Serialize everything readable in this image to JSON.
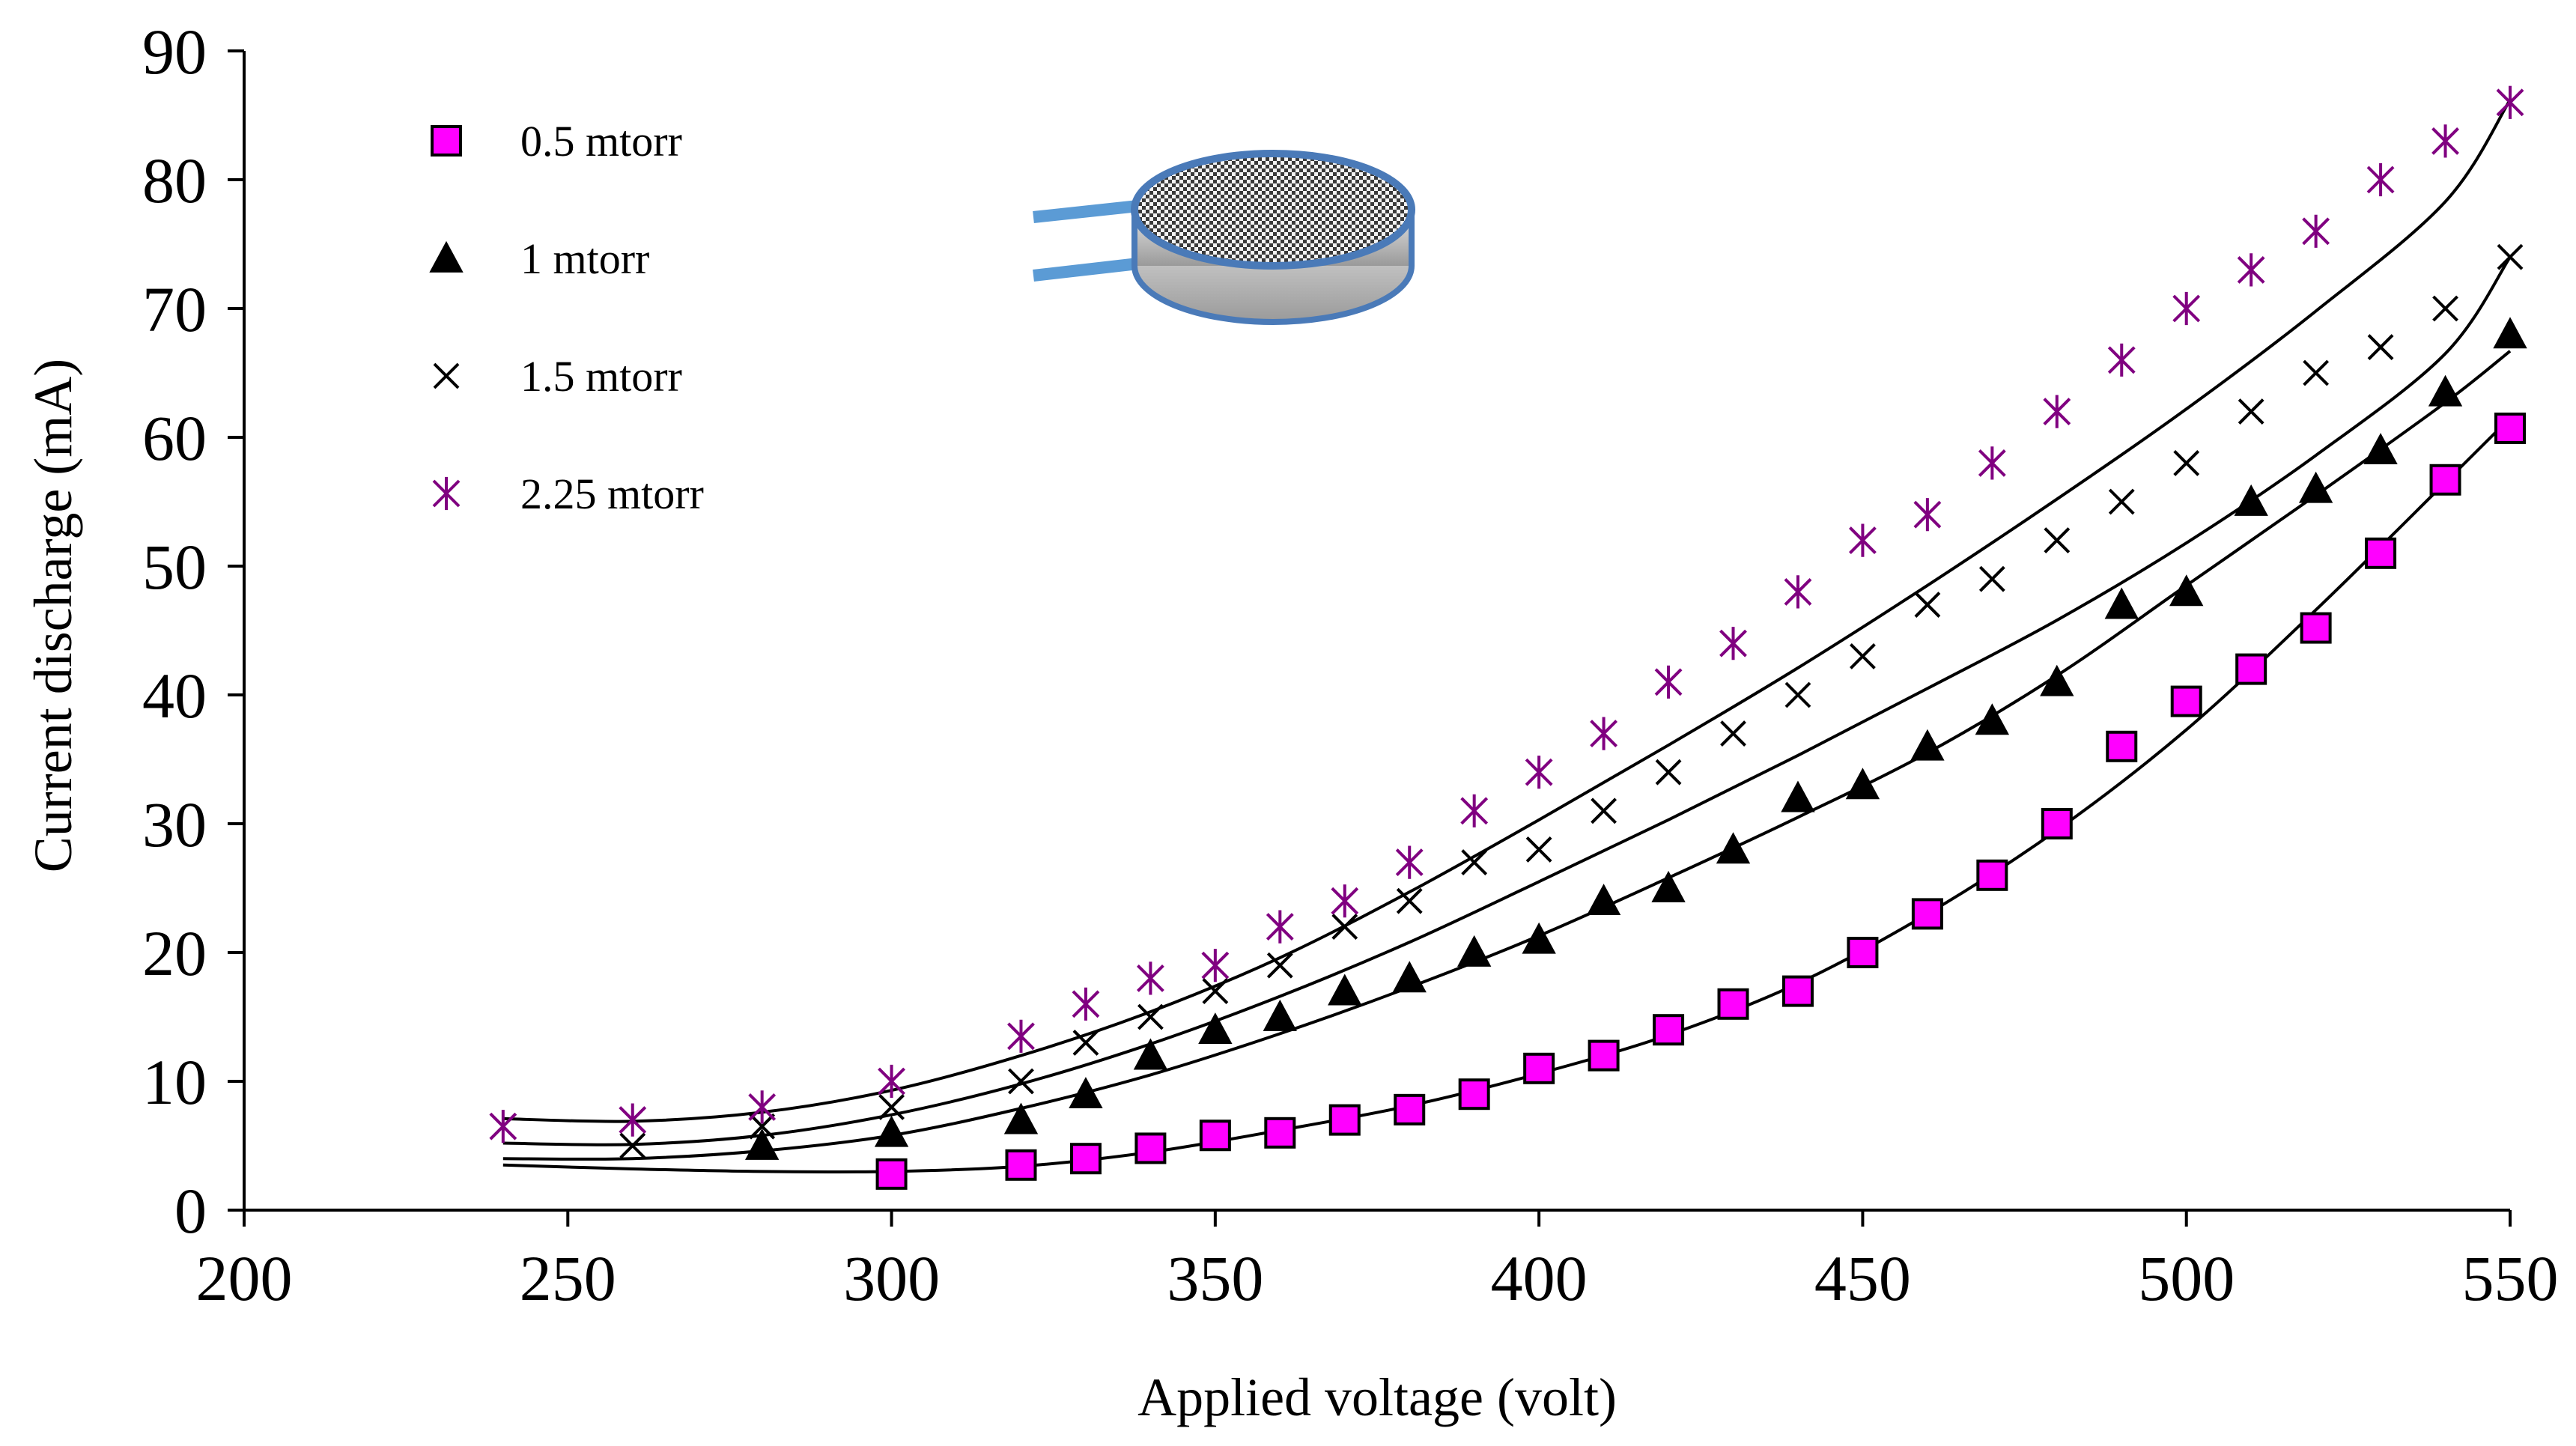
{
  "chart_data": {
    "type": "scatter",
    "title": "",
    "xlabel": "Applied voltage (volt)",
    "ylabel": "Current discharge (mA)",
    "xlim": [
      200,
      550
    ],
    "ylim": [
      0,
      90
    ],
    "xticks": [
      "200",
      "250",
      "300",
      "350",
      "400",
      "450",
      "500",
      "550"
    ],
    "yticks": [
      "0",
      "10",
      "20",
      "30",
      "40",
      "50",
      "60",
      "70",
      "80",
      "90"
    ],
    "legend_position": "top-left",
    "grid": false,
    "series": [
      {
        "name": "0.5 mtorr",
        "marker": "square",
        "color": "#ff00ff",
        "x": [
          300,
          320,
          330,
          340,
          350,
          360,
          370,
          380,
          390,
          400,
          410,
          420,
          430,
          440,
          450,
          460,
          470,
          480,
          490,
          500,
          510,
          520,
          530,
          540,
          550
        ],
        "y": [
          2.8,
          3.5,
          4,
          4.8,
          5.8,
          6,
          7,
          7.8,
          9,
          11,
          12,
          14,
          16,
          17,
          20,
          23,
          26,
          30,
          36,
          39.5,
          42,
          45.2,
          51,
          56.7,
          60.7
        ],
        "trend_x": [
          240,
          260,
          280,
          300,
          320,
          340,
          360,
          380,
          400,
          420,
          440,
          460,
          480,
          500,
          520,
          540,
          550
        ],
        "trend_y": [
          3.5,
          3.2,
          3.0,
          3.0,
          3.4,
          4.5,
          6.2,
          8.1,
          10.6,
          13.6,
          17.6,
          23.0,
          29.5,
          37.3,
          46.6,
          56.5,
          61.5
        ]
      },
      {
        "name": "1 mtorr",
        "marker": "triangle",
        "color": "#000000",
        "x": [
          280,
          300,
          320,
          330,
          340,
          350,
          360,
          370,
          380,
          390,
          400,
          410,
          420,
          430,
          440,
          450,
          460,
          470,
          480,
          490,
          500,
          510,
          520,
          530,
          540,
          550
        ],
        "y": [
          5,
          6,
          7,
          9,
          12,
          14,
          15,
          17,
          18,
          20,
          21,
          24,
          25,
          28,
          32,
          33,
          36,
          38,
          41,
          47,
          48,
          55,
          56,
          59,
          63.5,
          68
        ],
        "trend_x": [
          240,
          260,
          280,
          300,
          320,
          340,
          360,
          380,
          400,
          420,
          440,
          460,
          480,
          500,
          520,
          540,
          550
        ],
        "trend_y": [
          4.0,
          4.0,
          4.6,
          5.8,
          7.9,
          10.5,
          13.7,
          17.3,
          21.3,
          25.8,
          30.5,
          35.5,
          41.5,
          48.5,
          55.5,
          62.7,
          66.7
        ]
      },
      {
        "name": "1.5 mtorr",
        "marker": "x",
        "color": "#000000",
        "x": [
          260,
          280,
          300,
          320,
          330,
          340,
          350,
          360,
          370,
          380,
          390,
          400,
          410,
          420,
          430,
          440,
          450,
          460,
          470,
          480,
          490,
          500,
          510,
          520,
          530,
          540,
          550
        ],
        "y": [
          5,
          6.5,
          8,
          10,
          13,
          15,
          17,
          19,
          22,
          24,
          27,
          28,
          31,
          34,
          37,
          40,
          43,
          47,
          49,
          52,
          55,
          58,
          62,
          65,
          67,
          70,
          74
        ],
        "trend_x": [
          240,
          260,
          280,
          300,
          320,
          340,
          360,
          380,
          400,
          420,
          440,
          460,
          480,
          500,
          520,
          540,
          550
        ],
        "trend_y": [
          5.2,
          5.1,
          5.8,
          7.4,
          9.8,
          12.9,
          16.6,
          20.8,
          25.5,
          30.3,
          35.3,
          40.5,
          45.8,
          51.8,
          58.6,
          66.5,
          74.0
        ]
      },
      {
        "name": "2.25 mtorr",
        "marker": "asterisk",
        "color": "#800080",
        "x": [
          240,
          260,
          280,
          300,
          320,
          330,
          340,
          350,
          360,
          370,
          380,
          390,
          400,
          410,
          420,
          430,
          440,
          450,
          460,
          470,
          480,
          490,
          500,
          510,
          520,
          530,
          540,
          550
        ],
        "y": [
          6.5,
          7,
          8,
          10,
          13.5,
          16,
          18,
          19,
          22,
          24,
          27,
          31,
          34,
          37,
          41,
          44,
          48,
          52,
          54,
          58,
          62,
          66,
          70,
          73,
          76,
          80,
          83,
          86
        ],
        "trend_x": [
          240,
          260,
          280,
          300,
          320,
          340,
          360,
          380,
          400,
          420,
          440,
          460,
          480,
          500,
          520,
          540,
          550
        ],
        "trend_y": [
          7.1,
          6.9,
          7.6,
          9.3,
          12.0,
          15.4,
          19.6,
          24.7,
          30.3,
          36.1,
          42.1,
          48.5,
          55.2,
          62.2,
          69.8,
          78.3,
          86.2
        ]
      }
    ]
  },
  "inset": {
    "icon": "parallel-plate-electrodes-icon",
    "plate_top_color": "#555555",
    "plate_bottom_color": "#c8c8c8",
    "rim_color": "#4a7ab8",
    "lead_color": "#5b9bd5"
  }
}
